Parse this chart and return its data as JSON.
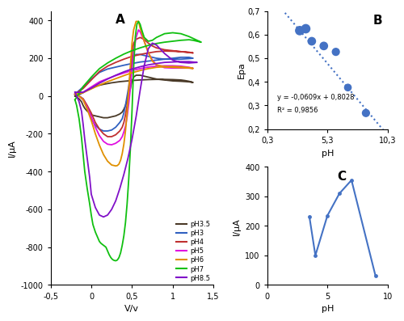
{
  "panel_A": {
    "title": "A",
    "xlabel": "V/v",
    "ylabel": "I/μA",
    "xlim": [
      -0.5,
      1.5
    ],
    "ylim": [
      -1000,
      450
    ],
    "xticks": [
      -0.5,
      0,
      0.5,
      1,
      1.5
    ],
    "xticklabels": [
      "-0,5",
      "0",
      "0,5",
      "1",
      "1,5"
    ],
    "yticks": [
      -1000,
      -800,
      -600,
      -400,
      -200,
      0,
      200,
      400
    ],
    "curves": {
      "pH3.5": {
        "color": "#4a3a28",
        "x": [
          -0.2,
          -0.18,
          -0.15,
          -0.12,
          -0.1,
          -0.08,
          -0.05,
          -0.02,
          0.0,
          0.05,
          0.1,
          0.15,
          0.2,
          0.25,
          0.3,
          0.35,
          0.38,
          0.4,
          0.42,
          0.44,
          0.46,
          0.48,
          0.5,
          0.52,
          0.55,
          0.6,
          0.65,
          0.7,
          0.75,
          0.8,
          0.9,
          1.0,
          1.1,
          1.2,
          1.25,
          1.2,
          1.15,
          1.1,
          1.0,
          0.9,
          0.8,
          0.7,
          0.6,
          0.5,
          0.45,
          0.4,
          0.35,
          0.3,
          0.25,
          0.2,
          0.15,
          0.1,
          0.05,
          0.0,
          -0.05,
          -0.1,
          -0.15,
          -0.2
        ],
        "y": [
          0,
          -5,
          -15,
          -30,
          -50,
          -65,
          -80,
          -90,
          -100,
          -105,
          -110,
          -115,
          -115,
          -110,
          -105,
          -95,
          -85,
          -70,
          -50,
          -20,
          10,
          40,
          80,
          100,
          110,
          110,
          105,
          100,
          95,
          90,
          85,
          80,
          78,
          75,
          72,
          78,
          82,
          85,
          87,
          88,
          88,
          87,
          85,
          82,
          80,
          78,
          76,
          73,
          70,
          66,
          62,
          57,
          50,
          40,
          30,
          18,
          8,
          0
        ]
      },
      "pH3": {
        "color": "#3060c0",
        "x": [
          -0.2,
          -0.15,
          -0.1,
          -0.08,
          -0.05,
          -0.02,
          0.0,
          0.05,
          0.1,
          0.15,
          0.2,
          0.25,
          0.3,
          0.35,
          0.38,
          0.4,
          0.42,
          0.44,
          0.46,
          0.48,
          0.5,
          0.52,
          0.55,
          0.6,
          0.65,
          0.7,
          0.75,
          0.8,
          0.9,
          1.0,
          1.1,
          1.2,
          1.25,
          1.2,
          1.1,
          1.0,
          0.9,
          0.8,
          0.7,
          0.6,
          0.5,
          0.4,
          0.3,
          0.2,
          0.1,
          0.0,
          -0.1,
          -0.2
        ],
        "y": [
          10,
          0,
          -15,
          -30,
          -55,
          -90,
          -120,
          -155,
          -175,
          -185,
          -185,
          -180,
          -165,
          -140,
          -120,
          -90,
          -50,
          0,
          50,
          120,
          185,
          210,
          220,
          220,
          215,
          210,
          205,
          200,
          195,
          195,
          195,
          198,
          200,
          205,
          205,
          200,
          195,
          190,
          185,
          180,
          172,
          163,
          153,
          143,
          125,
          90,
          48,
          10
        ]
      },
      "pH4": {
        "color": "#c03030",
        "x": [
          -0.2,
          -0.15,
          -0.1,
          -0.05,
          0.0,
          0.05,
          0.1,
          0.15,
          0.2,
          0.25,
          0.3,
          0.35,
          0.38,
          0.4,
          0.42,
          0.44,
          0.46,
          0.48,
          0.5,
          0.52,
          0.55,
          0.6,
          0.65,
          0.7,
          0.75,
          0.8,
          0.9,
          1.0,
          1.1,
          1.2,
          1.25,
          1.2,
          1.1,
          1.0,
          0.9,
          0.8,
          0.7,
          0.6,
          0.5,
          0.4,
          0.3,
          0.2,
          0.1,
          0.0,
          -0.1,
          -0.2
        ],
        "y": [
          10,
          0,
          -15,
          -50,
          -90,
          -140,
          -175,
          -200,
          -215,
          -215,
          -205,
          -185,
          -165,
          -140,
          -100,
          -50,
          30,
          120,
          220,
          280,
          300,
          310,
          300,
          280,
          265,
          255,
          245,
          240,
          235,
          230,
          228,
          232,
          235,
          237,
          238,
          235,
          228,
          220,
          210,
          195,
          178,
          158,
          130,
          85,
          40,
          10
        ]
      },
      "pH5": {
        "color": "#e010e0",
        "x": [
          -0.2,
          -0.15,
          -0.1,
          -0.05,
          0.0,
          0.05,
          0.1,
          0.15,
          0.2,
          0.25,
          0.3,
          0.35,
          0.38,
          0.4,
          0.42,
          0.44,
          0.46,
          0.48,
          0.5,
          0.52,
          0.55,
          0.58,
          0.6,
          0.65,
          0.7,
          0.75,
          0.8,
          0.9,
          1.0,
          1.1,
          1.2,
          1.25,
          1.2,
          1.1,
          1.0,
          0.9,
          0.8,
          0.7,
          0.6,
          0.5,
          0.4,
          0.3,
          0.2,
          0.1,
          0.0,
          -0.1,
          -0.2
        ],
        "y": [
          10,
          0,
          -20,
          -60,
          -110,
          -165,
          -210,
          -240,
          -255,
          -258,
          -250,
          -235,
          -215,
          -190,
          -160,
          -110,
          -40,
          40,
          140,
          230,
          310,
          350,
          340,
          290,
          230,
          190,
          165,
          150,
          148,
          148,
          148,
          147,
          152,
          158,
          160,
          160,
          158,
          153,
          145,
          135,
          122,
          108,
          92,
          75,
          48,
          20,
          10
        ]
      },
      "pH6": {
        "color": "#e09000",
        "x": [
          -0.2,
          -0.15,
          -0.1,
          -0.05,
          0.0,
          0.05,
          0.1,
          0.15,
          0.2,
          0.25,
          0.3,
          0.32,
          0.34,
          0.36,
          0.38,
          0.4,
          0.42,
          0.44,
          0.46,
          0.48,
          0.5,
          0.52,
          0.55,
          0.58,
          0.6,
          0.65,
          0.7,
          0.75,
          0.8,
          0.9,
          1.0,
          1.1,
          1.2,
          1.25,
          1.2,
          1.1,
          1.0,
          0.9,
          0.8,
          0.7,
          0.6,
          0.5,
          0.4,
          0.3,
          0.2,
          0.1,
          0.0,
          -0.1,
          -0.2
        ],
        "y": [
          10,
          0,
          -20,
          -70,
          -130,
          -200,
          -260,
          -310,
          -345,
          -365,
          -370,
          -368,
          -360,
          -340,
          -305,
          -255,
          -185,
          -90,
          30,
          160,
          280,
          350,
          395,
          395,
          360,
          290,
          230,
          185,
          165,
          155,
          152,
          150,
          148,
          146,
          150,
          154,
          156,
          155,
          152,
          145,
          135,
          123,
          108,
          92,
          76,
          58,
          38,
          18,
          10
        ]
      },
      "pH7": {
        "color": "#10c010",
        "x": [
          -0.2,
          -0.18,
          -0.15,
          -0.12,
          -0.1,
          -0.08,
          -0.05,
          -0.02,
          0.0,
          0.02,
          0.05,
          0.08,
          0.1,
          0.12,
          0.15,
          0.18,
          0.2,
          0.22,
          0.24,
          0.26,
          0.28,
          0.3,
          0.32,
          0.34,
          0.36,
          0.38,
          0.4,
          0.42,
          0.44,
          0.46,
          0.48,
          0.5,
          0.52,
          0.54,
          0.56,
          0.58,
          0.6,
          0.62,
          0.65,
          0.7,
          0.75,
          0.8,
          0.9,
          1.0,
          1.1,
          1.2,
          1.3,
          1.35,
          1.3,
          1.25,
          1.2,
          1.1,
          1.0,
          0.9,
          0.8,
          0.7,
          0.6,
          0.5,
          0.4,
          0.3,
          0.2,
          0.1,
          0.0,
          -0.1,
          -0.2
        ],
        "y": [
          -20,
          -50,
          -120,
          -220,
          -310,
          -400,
          -490,
          -570,
          -630,
          -680,
          -720,
          -750,
          -770,
          -780,
          -790,
          -800,
          -820,
          -840,
          -855,
          -865,
          -870,
          -872,
          -868,
          -855,
          -830,
          -790,
          -740,
          -670,
          -570,
          -440,
          -280,
          -80,
          150,
          310,
          380,
          395,
          380,
          350,
          310,
          290,
          295,
          310,
          330,
          335,
          330,
          315,
          295,
          285,
          290,
          295,
          298,
          295,
          290,
          285,
          278,
          268,
          255,
          240,
          222,
          200,
          175,
          145,
          100,
          50,
          -20
        ]
      },
      "pH8.5": {
        "color": "#8010c8",
        "x": [
          -0.2,
          -0.18,
          -0.15,
          -0.12,
          -0.1,
          -0.08,
          -0.05,
          -0.02,
          0.0,
          0.05,
          0.1,
          0.15,
          0.2,
          0.25,
          0.3,
          0.35,
          0.4,
          0.45,
          0.5,
          0.55,
          0.6,
          0.65,
          0.7,
          0.75,
          0.8,
          0.9,
          1.0,
          1.1,
          1.2,
          1.3,
          1.25,
          1.2,
          1.1,
          1.0,
          0.9,
          0.8,
          0.7,
          0.6,
          0.5,
          0.4,
          0.3,
          0.2,
          0.1,
          0.0,
          -0.1,
          -0.2
        ],
        "y": [
          20,
          0,
          -30,
          -80,
          -150,
          -230,
          -330,
          -430,
          -520,
          -590,
          -630,
          -640,
          -630,
          -600,
          -555,
          -490,
          -415,
          -330,
          -230,
          -110,
          30,
          160,
          250,
          280,
          270,
          225,
          190,
          178,
          175,
          178,
          180,
          182,
          182,
          180,
          178,
          172,
          165,
          155,
          143,
          128,
          110,
          90,
          68,
          42,
          20,
          20
        ]
      }
    },
    "legend": [
      "pH3.5",
      "pH3",
      "pH4",
      "pH5",
      "pH6",
      "pH7",
      "pH8.5"
    ],
    "legend_colors": [
      "#4a3a28",
      "#3060c0",
      "#c03030",
      "#e010e0",
      "#e09000",
      "#10c010",
      "#8010c8"
    ]
  },
  "panel_B": {
    "title": "B",
    "xlabel": "pH",
    "ylabel": "Epa",
    "xlim": [
      0.3,
      10.3
    ],
    "ylim": [
      0.2,
      0.7
    ],
    "xticks": [
      0.3,
      5.3,
      10.3
    ],
    "xticklabels": [
      "0,3",
      "5,3",
      "10,3"
    ],
    "yticks": [
      0.2,
      0.3,
      0.4,
      0.5,
      0.6,
      0.7
    ],
    "yticklabels": [
      "0,2",
      "0,3",
      "0,4",
      "0,5",
      "0,6",
      "0,7"
    ],
    "equation": "y = -0,0609x + 0,8028",
    "r2": "R² = 0,9856",
    "data_x": [
      3.5,
      3.0,
      4.0,
      5.0,
      6.0,
      7.0,
      8.5
    ],
    "data_y": [
      0.625,
      0.617,
      0.572,
      0.552,
      0.527,
      0.376,
      0.268
    ],
    "line_x": [
      0.8,
      10.3
    ],
    "line_y": [
      0.7514,
      0.1741
    ],
    "color": "#4472c4"
  },
  "panel_C": {
    "title": "C",
    "xlabel": "pH",
    "ylabel": "I/μA",
    "xlim": [
      0,
      10
    ],
    "ylim": [
      0,
      400
    ],
    "xticks": [
      0,
      5,
      10
    ],
    "yticks": [
      0,
      100,
      200,
      300,
      400
    ],
    "data_x": [
      3.5,
      4.0,
      5.0,
      6.0,
      7.0,
      9.0
    ],
    "data_y": [
      232,
      100,
      235,
      310,
      355,
      30
    ],
    "color": "#4472c4"
  }
}
